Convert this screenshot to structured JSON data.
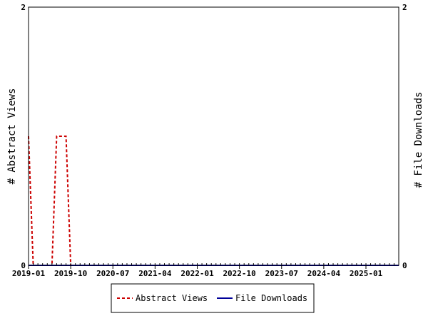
{
  "chart_data": {
    "type": "line",
    "x_tick_labels": [
      "2019-01",
      "2019-10",
      "2020-07",
      "2021-04",
      "2022-01",
      "2022-10",
      "2023-07",
      "2024-04",
      "2025-01"
    ],
    "ylabel_left": "# Abstract Views",
    "ylabel_right": "# File Downloads",
    "y_left_ticks": [
      "0",
      "2"
    ],
    "y_right_ticks": [
      "0",
      "2"
    ],
    "ylim": [
      0,
      2
    ],
    "months": 80,
    "legend_placement": "bottom",
    "series": [
      {
        "name": "Abstract Views",
        "color": "#cc0000",
        "style": "dashed",
        "values": [
          1,
          0,
          0,
          0,
          0,
          0,
          1,
          1,
          1,
          0,
          0,
          0,
          0,
          0,
          0,
          0,
          0,
          0,
          0,
          0,
          0,
          0,
          0,
          0,
          0,
          0,
          0,
          0,
          0,
          0,
          0,
          0,
          0,
          0,
          0,
          0,
          0,
          0,
          0,
          0,
          0,
          0,
          0,
          0,
          0,
          0,
          0,
          0,
          0,
          0,
          0,
          0,
          0,
          0,
          0,
          0,
          0,
          0,
          0,
          0,
          0,
          0,
          0,
          0,
          0,
          0,
          0,
          0,
          0,
          0,
          0,
          0,
          0,
          0,
          0,
          0,
          0,
          0,
          0,
          0
        ]
      },
      {
        "name": "File Downloads",
        "color": "#000099",
        "style": "solid",
        "values": [
          0,
          0,
          0,
          0,
          0,
          0,
          0,
          0,
          0,
          0,
          0,
          0,
          0,
          0,
          0,
          0,
          0,
          0,
          0,
          0,
          0,
          0,
          0,
          0,
          0,
          0,
          0,
          0,
          0,
          0,
          0,
          0,
          0,
          0,
          0,
          0,
          0,
          0,
          0,
          0,
          0,
          0,
          0,
          0,
          0,
          0,
          0,
          0,
          0,
          0,
          0,
          0,
          0,
          0,
          0,
          0,
          0,
          0,
          0,
          0,
          0,
          0,
          0,
          0,
          0,
          0,
          0,
          0,
          0,
          0,
          0,
          0,
          0,
          0,
          0,
          0,
          0,
          0,
          0,
          0
        ]
      }
    ]
  }
}
